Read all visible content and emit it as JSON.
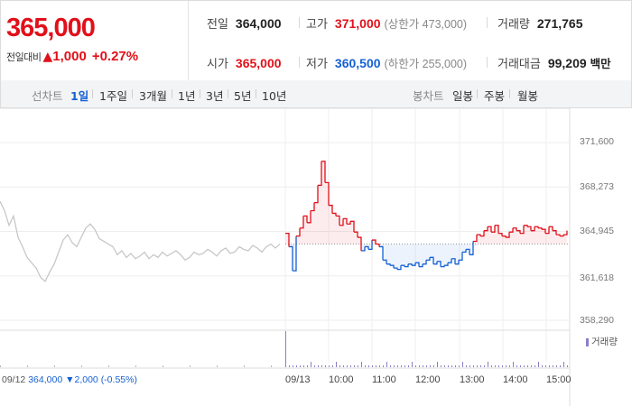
{
  "quote": {
    "price": "365,000",
    "change_label": "전일대비",
    "change_icon": "up-triangle-icon",
    "change_symbol": "▲",
    "change_amount": "1,000",
    "change_percent": "+0.27%",
    "stats": {
      "prev_close_label": "전일",
      "prev_close": "364,000",
      "high_label": "고가",
      "high": "371,000",
      "upper_limit": "(상한가 473,000)",
      "volume_label": "거래량",
      "volume": "271,765",
      "open_label": "시가",
      "open": "365,000",
      "low_label": "저가",
      "low": "360,500",
      "lower_limit": "(하한가 255,000)",
      "amount_label": "거래대금",
      "amount": "99,209",
      "amount_unit": "백만"
    }
  },
  "tabs": {
    "line_title": "선차트",
    "line_periods": [
      "1일",
      "1주일",
      "3개월",
      "1년",
      "3년",
      "5년",
      "10년"
    ],
    "active_line": "1일",
    "candle_title": "봉차트",
    "candle_periods": [
      "일봉",
      "주봉",
      "월봉"
    ]
  },
  "colors": {
    "up": "#e1101a",
    "down": "#1560d4",
    "prev_day": "#c4c4c4",
    "volume": "#8a7fc7"
  },
  "prev_day_info": {
    "date": "09/12",
    "close": "364,000",
    "change": "▼2,000",
    "change_pct": "(-0.55%)"
  },
  "volume_legend": "거래량",
  "chart_data": {
    "type": "line",
    "y_ticks": [
      "371,600",
      "368,273",
      "364,945",
      "361,618",
      "358,290"
    ],
    "y_tick_values": [
      371600,
      368273,
      364945,
      361618,
      358290
    ],
    "ylim": [
      358290,
      371600
    ],
    "reference_price": 364000,
    "x_date_labels": [
      "09/12",
      "09/13"
    ],
    "x_time_labels": [
      "10:00",
      "11:00",
      "12:00",
      "13:00",
      "14:00",
      "15:00"
    ],
    "grid": true,
    "series": [
      {
        "segment": "prev_day",
        "x": [
          0,
          5,
          10,
          15,
          20,
          25,
          30,
          35,
          40,
          45,
          50,
          55,
          60,
          65,
          70,
          75,
          80,
          85,
          90,
          95,
          100,
          105,
          110,
          115,
          120,
          125,
          130,
          135,
          140,
          145,
          150,
          155,
          160,
          165,
          170,
          175,
          180,
          185,
          190,
          195,
          200,
          205,
          210,
          215,
          220,
          225,
          230,
          235,
          240,
          245,
          250,
          255,
          260,
          265,
          270,
          275,
          280,
          285,
          290,
          295,
          300,
          305,
          310
        ],
        "values": [
          367200,
          366500,
          365400,
          366100,
          364500,
          363800,
          363000,
          362600,
          362200,
          361500,
          361200,
          361900,
          362500,
          363400,
          364300,
          364700,
          364100,
          363800,
          364500,
          365200,
          365500,
          365100,
          364400,
          364200,
          364000,
          363800,
          363200,
          363500,
          363000,
          363300,
          362900,
          363100,
          363400,
          362900,
          363200,
          363000,
          363400,
          363100,
          363300,
          363500,
          363200,
          362800,
          363000,
          363400,
          363200,
          363300,
          363600,
          363400,
          363100,
          363500,
          363700,
          363300,
          363400,
          363800,
          363600,
          363500,
          363900,
          363700,
          363400,
          363800,
          364000,
          363700,
          364000
        ]
      },
      {
        "segment": "today",
        "x": [
          316,
          320,
          324,
          328,
          332,
          336,
          340,
          344,
          348,
          352,
          356,
          360,
          364,
          368,
          372,
          376,
          380,
          384,
          388,
          392,
          396,
          400,
          404,
          408,
          412,
          416,
          420,
          424,
          428,
          432,
          436,
          440,
          444,
          448,
          452,
          456,
          460,
          464,
          468,
          472,
          476,
          480,
          484,
          488,
          492,
          496,
          500,
          504,
          508,
          512,
          516,
          520,
          524,
          528,
          532,
          536,
          540,
          544,
          548,
          552,
          556,
          560,
          564,
          568,
          572,
          576,
          580,
          584,
          588,
          592,
          596,
          600,
          604,
          608,
          612,
          616,
          620,
          624,
          628
        ],
        "values": [
          364800,
          363800,
          362000,
          364600,
          365200,
          366100,
          365600,
          366500,
          367100,
          368400,
          370200,
          368600,
          366900,
          366300,
          366100,
          365400,
          365900,
          365500,
          365700,
          364900,
          364500,
          363500,
          363800,
          363600,
          364300,
          364000,
          363800,
          362800,
          362500,
          362400,
          362200,
          362100,
          362400,
          362300,
          362500,
          362400,
          362600,
          362300,
          362500,
          362800,
          363000,
          362500,
          362700,
          362300,
          362400,
          362600,
          362900,
          362500,
          362800,
          363400,
          363600,
          363200,
          364200,
          364700,
          364600,
          365000,
          365300,
          364900,
          365400,
          364800,
          364600,
          364500,
          364900,
          365200,
          365000,
          364800,
          365400,
          365300,
          365000,
          365300,
          365200,
          365100,
          364800,
          365300,
          365000,
          364700,
          364600,
          364700,
          365000
        ]
      }
    ]
  }
}
